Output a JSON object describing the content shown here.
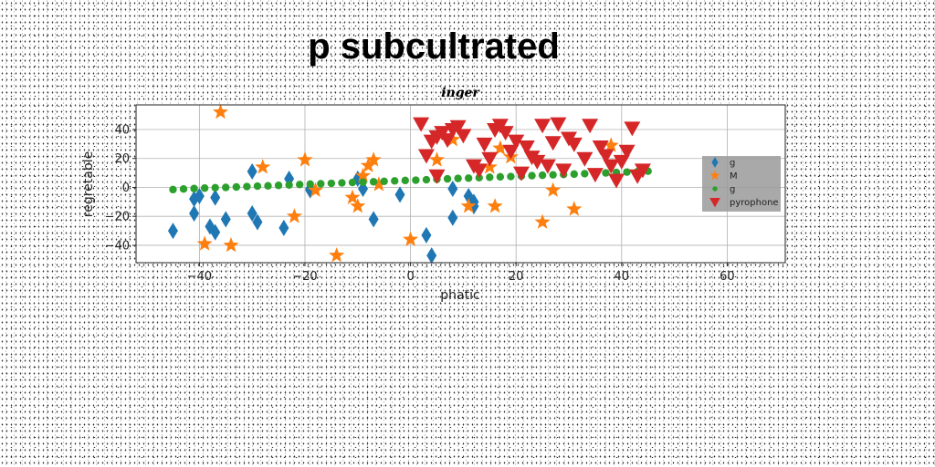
{
  "chart_data": {
    "type": "scatter",
    "suptitle": "p subcultrated",
    "title": "inger",
    "xlabel": "phatic",
    "ylabel": "regretable",
    "xlim": [
      -52,
      71
    ],
    "ylim": [
      -52,
      57
    ],
    "xticks": [
      -40,
      -20,
      0,
      20,
      40,
      60
    ],
    "yticks": [
      -40,
      -20,
      0,
      20,
      40
    ],
    "xtick_labels": [
      "−40",
      "−20",
      "0",
      "20",
      "40",
      "60"
    ],
    "ytick_labels": [
      "−40",
      "−20",
      "0",
      "20",
      "40"
    ],
    "grid": true,
    "legend_position": "center-right",
    "series": [
      {
        "name": "g",
        "marker": "diamond",
        "color": "#1f77b4",
        "points": [
          [
            -45,
            -30
          ],
          [
            -41,
            -18
          ],
          [
            -41,
            -8
          ],
          [
            -40,
            -6
          ],
          [
            -38,
            -27
          ],
          [
            -37,
            -31
          ],
          [
            -37,
            -7
          ],
          [
            -35,
            -22
          ],
          [
            -30,
            11
          ],
          [
            -30,
            -18
          ],
          [
            -29,
            -24
          ],
          [
            -24,
            -28
          ],
          [
            -23,
            6
          ],
          [
            -19,
            -2
          ],
          [
            -19,
            -1
          ],
          [
            -10,
            6
          ],
          [
            -9,
            -1
          ],
          [
            -7,
            -22
          ],
          [
            -2,
            -5
          ],
          [
            3,
            -33
          ],
          [
            4,
            -47
          ],
          [
            8,
            -1
          ],
          [
            8,
            -21
          ],
          [
            11,
            -6
          ],
          [
            12,
            -13
          ],
          [
            12,
            -10
          ]
        ]
      },
      {
        "name": "M",
        "marker": "star",
        "color": "#ff7f0e",
        "points": [
          [
            -36,
            52
          ],
          [
            -39,
            -39
          ],
          [
            -34,
            -40
          ],
          [
            -28,
            14
          ],
          [
            -22,
            -20
          ],
          [
            -20,
            19
          ],
          [
            -18,
            -2
          ],
          [
            -14,
            -47
          ],
          [
            -11,
            -7
          ],
          [
            -10,
            -13
          ],
          [
            -9,
            8
          ],
          [
            -8,
            15
          ],
          [
            -7,
            19
          ],
          [
            -6,
            2
          ],
          [
            0,
            -36
          ],
          [
            5,
            19
          ],
          [
            8,
            33
          ],
          [
            11,
            -13
          ],
          [
            15,
            14
          ],
          [
            16,
            -13
          ],
          [
            17,
            27
          ],
          [
            19,
            21
          ],
          [
            25,
            -24
          ],
          [
            27,
            -2
          ],
          [
            31,
            -15
          ],
          [
            38,
            29
          ]
        ]
      },
      {
        "name": "g",
        "marker": "circle",
        "color": "#2ca02c",
        "points": [
          [
            -45,
            -1.5
          ],
          [
            -43,
            -1.1
          ],
          [
            -41,
            -0.8
          ],
          [
            -39,
            -0.5
          ],
          [
            -37,
            -0.2
          ],
          [
            -35,
            0
          ],
          [
            -33,
            0.3
          ],
          [
            -31,
            0.6
          ],
          [
            -29,
            0.9
          ],
          [
            -27,
            1.1
          ],
          [
            -25,
            1.4
          ],
          [
            -23,
            1.7
          ],
          [
            -21,
            2
          ],
          [
            -19,
            2.3
          ],
          [
            -17,
            2.5
          ],
          [
            -15,
            2.8
          ],
          [
            -13,
            3.1
          ],
          [
            -11,
            3.4
          ],
          [
            -9,
            3.6
          ],
          [
            -7,
            3.9
          ],
          [
            -5,
            4.2
          ],
          [
            -3,
            4.5
          ],
          [
            -1,
            4.8
          ],
          [
            1,
            5
          ],
          [
            3,
            5.3
          ],
          [
            5,
            5.6
          ],
          [
            7,
            5.9
          ],
          [
            9,
            6.2
          ],
          [
            11,
            6.4
          ],
          [
            13,
            6.7
          ],
          [
            15,
            7
          ],
          [
            17,
            7.3
          ],
          [
            19,
            7.5
          ],
          [
            21,
            7.8
          ],
          [
            23,
            8.1
          ],
          [
            25,
            8.4
          ],
          [
            27,
            8.7
          ],
          [
            29,
            8.9
          ],
          [
            31,
            9.2
          ],
          [
            33,
            9.5
          ],
          [
            35,
            9.8
          ],
          [
            37,
            10
          ],
          [
            39,
            10.3
          ],
          [
            41,
            10.6
          ],
          [
            43,
            10.9
          ],
          [
            45,
            11.2
          ]
        ]
      },
      {
        "name": "pyrophone",
        "marker": "triangle-down",
        "color": "#d62728",
        "points": [
          [
            2,
            44
          ],
          [
            3,
            22
          ],
          [
            4,
            32
          ],
          [
            5,
            35
          ],
          [
            5,
            8
          ],
          [
            6,
            38
          ],
          [
            7,
            33
          ],
          [
            8,
            40
          ],
          [
            9,
            42
          ],
          [
            10,
            36
          ],
          [
            12,
            15
          ],
          [
            13,
            12
          ],
          [
            14,
            30
          ],
          [
            15,
            20
          ],
          [
            16,
            40
          ],
          [
            17,
            43
          ],
          [
            18,
            38
          ],
          [
            19,
            25
          ],
          [
            20,
            32
          ],
          [
            21,
            10
          ],
          [
            22,
            28
          ],
          [
            23,
            21
          ],
          [
            24,
            18
          ],
          [
            25,
            43
          ],
          [
            26,
            15
          ],
          [
            27,
            31
          ],
          [
            28,
            44
          ],
          [
            29,
            12
          ],
          [
            30,
            34
          ],
          [
            31,
            30
          ],
          [
            33,
            20
          ],
          [
            34,
            43
          ],
          [
            35,
            9
          ],
          [
            36,
            28
          ],
          [
            37,
            22
          ],
          [
            38,
            15
          ],
          [
            39,
            5
          ],
          [
            40,
            18
          ],
          [
            41,
            25
          ],
          [
            42,
            41
          ],
          [
            43,
            8
          ],
          [
            44,
            12
          ]
        ]
      }
    ]
  }
}
